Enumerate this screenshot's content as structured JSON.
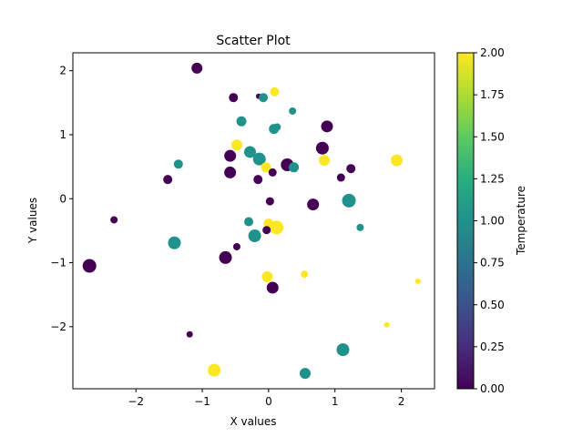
{
  "chart_data": {
    "type": "scatter",
    "title": "Scatter Plot",
    "xlabel": "X values",
    "ylabel": "Y values",
    "xlim": [
      -2.95,
      2.5
    ],
    "ylim": [
      -2.97,
      2.28
    ],
    "xticks": [
      -2,
      -1,
      0,
      1,
      2
    ],
    "yticks": [
      -2,
      -1,
      0,
      1,
      2
    ],
    "grid": false,
    "colorbar": {
      "label": "Temperature",
      "range": [
        0.0,
        2.0
      ],
      "ticks": [
        0.0,
        0.25,
        0.5,
        0.75,
        1.0,
        1.25,
        1.5,
        1.75,
        2.0
      ],
      "colormap": "viridis"
    },
    "points": [
      {
        "x": -1.08,
        "y": 2.04,
        "c": 0,
        "s": 6
      },
      {
        "x": -0.53,
        "y": 1.58,
        "c": 0,
        "s": 5
      },
      {
        "x": -0.15,
        "y": 1.6,
        "c": 0,
        "s": 3
      },
      {
        "x": -0.08,
        "y": 1.58,
        "c": 1,
        "s": 5
      },
      {
        "x": 0.09,
        "y": 1.67,
        "c": 2,
        "s": 5
      },
      {
        "x": -0.41,
        "y": 1.21,
        "c": 1,
        "s": 5.5
      },
      {
        "x": 0.36,
        "y": 1.37,
        "c": 1,
        "s": 4
      },
      {
        "x": 0.08,
        "y": 1.09,
        "c": 1,
        "s": 5.5
      },
      {
        "x": 0.13,
        "y": 1.12,
        "c": 1,
        "s": 4
      },
      {
        "x": 0.88,
        "y": 1.13,
        "c": 0,
        "s": 6.5
      },
      {
        "x": -0.48,
        "y": 0.84,
        "c": 2,
        "s": 6
      },
      {
        "x": -0.28,
        "y": 0.73,
        "c": 1,
        "s": 6.5
      },
      {
        "x": -0.58,
        "y": 0.67,
        "c": 0,
        "s": 6.5
      },
      {
        "x": -0.14,
        "y": 0.62,
        "c": 1,
        "s": 7
      },
      {
        "x": 0.81,
        "y": 0.79,
        "c": 0,
        "s": 7
      },
      {
        "x": -1.36,
        "y": 0.54,
        "c": 1,
        "s": 5
      },
      {
        "x": 0.28,
        "y": 0.53,
        "c": 0,
        "s": 7
      },
      {
        "x": 0.38,
        "y": 0.49,
        "c": 1,
        "s": 5.5
      },
      {
        "x": -0.04,
        "y": 0.49,
        "c": 2,
        "s": 5.5
      },
      {
        "x": 0.84,
        "y": 0.6,
        "c": 2,
        "s": 6
      },
      {
        "x": 1.93,
        "y": 0.6,
        "c": 2,
        "s": 6.5
      },
      {
        "x": 1.24,
        "y": 0.47,
        "c": 0,
        "s": 5
      },
      {
        "x": -0.58,
        "y": 0.41,
        "c": 0,
        "s": 6.5
      },
      {
        "x": 0.06,
        "y": 0.41,
        "c": 0,
        "s": 4.5
      },
      {
        "x": 1.09,
        "y": 0.33,
        "c": 0,
        "s": 4.5
      },
      {
        "x": -1.52,
        "y": 0.3,
        "c": 0,
        "s": 5
      },
      {
        "x": -0.16,
        "y": 0.3,
        "c": 0,
        "s": 5
      },
      {
        "x": 1.21,
        "y": -0.03,
        "c": 1,
        "s": 7.5
      },
      {
        "x": 0.02,
        "y": -0.04,
        "c": 0,
        "s": 4.5
      },
      {
        "x": 0.67,
        "y": -0.09,
        "c": 0,
        "s": 6.5
      },
      {
        "x": -2.33,
        "y": -0.33,
        "c": 0,
        "s": 4
      },
      {
        "x": -0.3,
        "y": -0.36,
        "c": 1,
        "s": 5
      },
      {
        "x": 0.0,
        "y": -0.39,
        "c": 2,
        "s": 5.5
      },
      {
        "x": 0.12,
        "y": -0.45,
        "c": 2,
        "s": 7.5
      },
      {
        "x": -0.03,
        "y": -0.49,
        "c": 0,
        "s": 4.5
      },
      {
        "x": 1.38,
        "y": -0.45,
        "c": 1,
        "s": 4
      },
      {
        "x": -0.21,
        "y": -0.58,
        "c": 1,
        "s": 7
      },
      {
        "x": -1.42,
        "y": -0.69,
        "c": 1,
        "s": 7
      },
      {
        "x": -0.48,
        "y": -0.75,
        "c": 0,
        "s": 4
      },
      {
        "x": -0.65,
        "y": -0.92,
        "c": 0,
        "s": 7
      },
      {
        "x": -2.7,
        "y": -1.05,
        "c": 0,
        "s": 7.5
      },
      {
        "x": 0.54,
        "y": -1.18,
        "c": 2,
        "s": 4
      },
      {
        "x": -0.02,
        "y": -1.22,
        "c": 2,
        "s": 6
      },
      {
        "x": 0.06,
        "y": -1.39,
        "c": 0,
        "s": 6.5
      },
      {
        "x": 2.25,
        "y": -1.29,
        "c": 2,
        "s": 3
      },
      {
        "x": -1.19,
        "y": -2.12,
        "c": 0,
        "s": 3.5
      },
      {
        "x": 1.78,
        "y": -1.97,
        "c": 2,
        "s": 3
      },
      {
        "x": 1.12,
        "y": -2.36,
        "c": 1,
        "s": 7
      },
      {
        "x": -0.82,
        "y": -2.68,
        "c": 2,
        "s": 7
      },
      {
        "x": 0.55,
        "y": -2.73,
        "c": 1,
        "s": 6
      }
    ]
  }
}
